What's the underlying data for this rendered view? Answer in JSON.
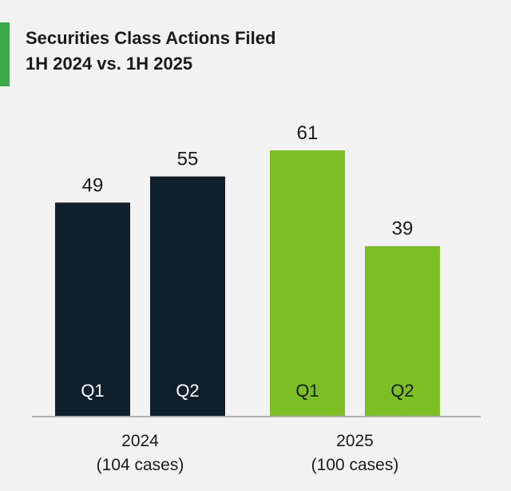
{
  "header": {
    "title_line1": "Securities Class Actions Filed",
    "title_line2": "1H 2024 vs. 1H 2025"
  },
  "colors": {
    "accent": "#3aa845",
    "bar_2024": "#0f1f2c",
    "bar_2025": "#7bbf25",
    "label_on_2024": "#ffffff",
    "label_on_2025": "#1a1a1a",
    "axis": "#9a9a9a"
  },
  "chart_data": {
    "type": "bar",
    "title": "Securities Class Actions Filed 1H 2024 vs. 1H 2025",
    "groups": [
      {
        "label_line1": "2024",
        "label_line2": "(104 cases)",
        "bars": [
          {
            "category": "Q1",
            "value": 49
          },
          {
            "category": "Q2",
            "value": 55
          }
        ]
      },
      {
        "label_line1": "2025",
        "label_line2": "(100 cases)",
        "bars": [
          {
            "category": "Q1",
            "value": 61
          },
          {
            "category": "Q2",
            "value": 39
          }
        ]
      }
    ],
    "ylim": [
      0,
      61
    ],
    "grid": false,
    "legend": "none"
  }
}
